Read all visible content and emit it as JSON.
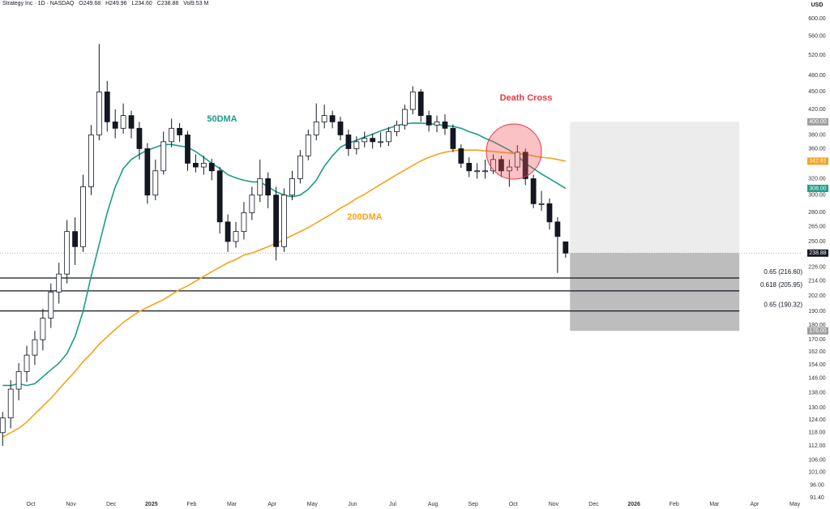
{
  "header": {
    "symbol": "Strategy Inc · 1D · NASDAQ",
    "ohlcv": [
      "O249.68",
      "H249.96",
      "L234.60",
      "C238.88",
      "Vol9.53 M"
    ]
  },
  "chart_data": {
    "type": "candlestick",
    "currency": "USD",
    "log_scale": true,
    "xlim": [
      -0.766,
      19.19
    ],
    "xticks": [
      {
        "value": 0,
        "label": "Oct"
      },
      {
        "value": 1,
        "label": "Nov"
      },
      {
        "value": 2,
        "label": "Dec"
      },
      {
        "value": 3,
        "label": "2025"
      },
      {
        "value": 4,
        "label": "Feb"
      },
      {
        "value": 5,
        "label": "Mar"
      },
      {
        "value": 6,
        "label": "Apr"
      },
      {
        "value": 7,
        "label": "May"
      },
      {
        "value": 8,
        "label": "Jun"
      },
      {
        "value": 9,
        "label": "Jul"
      },
      {
        "value": 10,
        "label": "Aug"
      },
      {
        "value": 11,
        "label": "Sep"
      },
      {
        "value": 12,
        "label": "Oct"
      },
      {
        "value": 13,
        "label": "Nov"
      },
      {
        "value": 14,
        "label": "Dec"
      },
      {
        "value": 15,
        "label": "2026"
      },
      {
        "value": 16,
        "label": "Feb"
      },
      {
        "value": 17,
        "label": "Mar"
      },
      {
        "value": 18,
        "label": "Apr"
      },
      {
        "value": 19,
        "label": "May"
      }
    ],
    "ylim": [
      91.4,
      645.6
    ],
    "yticks": [
      {
        "value": 600,
        "label": "600.00"
      },
      {
        "value": 560,
        "label": "560.00"
      },
      {
        "value": 520,
        "label": "520.00"
      },
      {
        "value": 480,
        "label": "480.00"
      },
      {
        "value": 450,
        "label": "450.00"
      },
      {
        "value": 420,
        "label": "420.00"
      },
      {
        "value": 380,
        "label": "380.00"
      },
      {
        "value": 360,
        "label": "360.00"
      },
      {
        "value": 320,
        "label": "320.00"
      },
      {
        "value": 300,
        "label": "300.00"
      },
      {
        "value": 280,
        "label": "280.00"
      },
      {
        "value": 265,
        "label": "265.00"
      },
      {
        "value": 250,
        "label": "250.00"
      },
      {
        "value": 226,
        "label": "226.00"
      },
      {
        "value": 214,
        "label": "214.00"
      },
      {
        "value": 202,
        "label": "202.00"
      },
      {
        "value": 190,
        "label": "190.00"
      },
      {
        "value": 180,
        "label": "180.00"
      },
      {
        "value": 170,
        "label": "170.00"
      },
      {
        "value": 162,
        "label": "162.00"
      },
      {
        "value": 154,
        "label": "154.00"
      },
      {
        "value": 146,
        "label": "146.00"
      },
      {
        "value": 138,
        "label": "138.00"
      },
      {
        "value": 130,
        "label": "130.00"
      },
      {
        "value": 124,
        "label": "124.00"
      },
      {
        "value": 118,
        "label": "118.00"
      },
      {
        "value": 112,
        "label": "112.00"
      },
      {
        "value": 106,
        "label": "106.00"
      },
      {
        "value": 101,
        "label": "101.00"
      },
      {
        "value": 96,
        "label": "96.00"
      },
      {
        "value": 91.4,
        "label": "91.40"
      }
    ],
    "x": [
      -0.7,
      -0.5,
      -0.3,
      -0.1,
      0.1,
      0.3,
      0.5,
      0.7,
      0.9,
      1.1,
      1.3,
      1.5,
      1.7,
      1.9,
      2.1,
      2.3,
      2.5,
      2.7,
      2.9,
      3.1,
      3.3,
      3.5,
      3.7,
      3.9,
      4.1,
      4.3,
      4.5,
      4.7,
      4.9,
      5.1,
      5.3,
      5.5,
      5.7,
      5.9,
      6.1,
      6.3,
      6.5,
      6.7,
      6.9,
      7.1,
      7.3,
      7.5,
      7.7,
      7.9,
      8.1,
      8.3,
      8.5,
      8.7,
      8.9,
      9.1,
      9.3,
      9.5,
      9.7,
      9.9,
      10.1,
      10.3,
      10.5,
      10.7,
      10.9,
      11.1,
      11.3,
      11.5,
      11.7,
      11.9,
      12.1,
      12.3,
      12.5,
      12.7,
      12.9,
      13.1,
      13.3
    ],
    "up_color": "#ffffff",
    "down_color": "#131722",
    "candle_edge": "#131722",
    "candles": [
      [
        118,
        128,
        112,
        125
      ],
      [
        125,
        145,
        120,
        140
      ],
      [
        140,
        155,
        134,
        150
      ],
      [
        150,
        166,
        144,
        160
      ],
      [
        160,
        176,
        154,
        170
      ],
      [
        170,
        192,
        163,
        185
      ],
      [
        185,
        212,
        178,
        205
      ],
      [
        205,
        230,
        196,
        220
      ],
      [
        220,
        272,
        212,
        260
      ],
      [
        260,
        275,
        228,
        245
      ],
      [
        245,
        325,
        240,
        310
      ],
      [
        310,
        395,
        300,
        380
      ],
      [
        380,
        543,
        372,
        450
      ],
      [
        450,
        470,
        385,
        400
      ],
      [
        400,
        420,
        375,
        390
      ],
      [
        390,
        430,
        382,
        410
      ],
      [
        410,
        418,
        375,
        390
      ],
      [
        390,
        400,
        345,
        360
      ],
      [
        360,
        368,
        290,
        300
      ],
      [
        300,
        345,
        294,
        330
      ],
      [
        330,
        385,
        325,
        370
      ],
      [
        370,
        405,
        362,
        390
      ],
      [
        390,
        398,
        370,
        380
      ],
      [
        380,
        386,
        330,
        340
      ],
      [
        340,
        352,
        328,
        335
      ],
      [
        335,
        350,
        325,
        340
      ],
      [
        340,
        346,
        318,
        330
      ],
      [
        330,
        335,
        258,
        270
      ],
      [
        270,
        278,
        240,
        250
      ],
      [
        250,
        270,
        244,
        260
      ],
      [
        260,
        292,
        252,
        280
      ],
      [
        280,
        310,
        272,
        300
      ],
      [
        300,
        345,
        292,
        320
      ],
      [
        320,
        328,
        285,
        300
      ],
      [
        300,
        310,
        232,
        245
      ],
      [
        245,
        308,
        240,
        300
      ],
      [
        300,
        330,
        294,
        320
      ],
      [
        320,
        358,
        314,
        350
      ],
      [
        350,
        388,
        344,
        380
      ],
      [
        380,
        430,
        372,
        400
      ],
      [
        400,
        428,
        390,
        410
      ],
      [
        410,
        418,
        390,
        400
      ],
      [
        400,
        408,
        372,
        380
      ],
      [
        380,
        388,
        350,
        360
      ],
      [
        360,
        378,
        352,
        370
      ],
      [
        370,
        385,
        362,
        375
      ],
      [
        375,
        382,
        360,
        370
      ],
      [
        370,
        384,
        362,
        370
      ],
      [
        370,
        392,
        364,
        385
      ],
      [
        385,
        402,
        378,
        395
      ],
      [
        395,
        428,
        388,
        420
      ],
      [
        420,
        460,
        412,
        450
      ],
      [
        450,
        455,
        400,
        410
      ],
      [
        410,
        418,
        385,
        395
      ],
      [
        395,
        410,
        384,
        400
      ],
      [
        400,
        412,
        380,
        390
      ],
      [
        390,
        396,
        355,
        360
      ],
      [
        360,
        366,
        334,
        340
      ],
      [
        340,
        348,
        322,
        330
      ],
      [
        330,
        340,
        320,
        330
      ],
      [
        330,
        345,
        320,
        330
      ],
      [
        330,
        352,
        326,
        345
      ],
      [
        345,
        350,
        322,
        330
      ],
      [
        330,
        345,
        310,
        335
      ],
      [
        335,
        365,
        330,
        355
      ],
      [
        355,
        360,
        312,
        320
      ],
      [
        320,
        325,
        285,
        290
      ],
      [
        290,
        305,
        282,
        290
      ],
      [
        290,
        296,
        262,
        270
      ],
      [
        270,
        275,
        221,
        255
      ],
      [
        249.68,
        249.96,
        234.6,
        238.88
      ]
    ],
    "series": [
      {
        "name": "50DMA",
        "color": "#1a9e86",
        "values": [
          142,
          142,
          143,
          142,
          143,
          147,
          151,
          155,
          161,
          172,
          190,
          218,
          247,
          280,
          310,
          333,
          345,
          352,
          358,
          362,
          366,
          366,
          364,
          362,
          356,
          348,
          340,
          333,
          325,
          321,
          318,
          316,
          316,
          310,
          304,
          300,
          298,
          300,
          307,
          318,
          336,
          350,
          362,
          368,
          372,
          377,
          381,
          386,
          390,
          394,
          397,
          398,
          398,
          397,
          396,
          394,
          393,
          390,
          385,
          381,
          375,
          370,
          364,
          358,
          350,
          340,
          333,
          326,
          320,
          314,
          308
        ]
      },
      {
        "name": "200DMA",
        "color": "#f7a21b",
        "values": [
          116,
          118,
          120,
          123,
          127,
          131,
          135,
          140,
          145,
          150,
          156,
          161,
          167,
          172,
          177,
          182,
          186,
          190,
          193,
          196,
          199,
          203,
          207,
          210,
          214,
          218,
          222,
          226,
          230,
          233,
          237,
          239,
          242,
          245,
          248,
          252,
          256,
          260,
          264,
          269,
          274,
          279,
          285,
          290,
          296,
          301,
          307,
          313,
          319,
          325,
          331,
          337,
          343,
          348,
          352,
          355,
          357,
          358,
          358,
          358,
          357,
          356,
          355,
          354,
          353,
          352,
          350,
          348,
          347,
          345,
          342.81
        ]
      }
    ],
    "annotation": "Death Cross",
    "annotation_color": "#e53945",
    "levels": [
      {
        "value": 216.6,
        "label": "0.65 (216.60)"
      },
      {
        "value": 205.95,
        "label": "0.618 (205.95)"
      },
      {
        "value": 190.32,
        "label": "0.65 (190.32)"
      }
    ],
    "target_box": {
      "x": [
        13.41,
        17.62
      ],
      "top": 400,
      "mid": 238.88,
      "bottom": 176,
      "upper_color": "#ececec",
      "lower_color": "#bdbdbd"
    },
    "axis_badges": [
      {
        "value": 400,
        "label": "400.00",
        "color": "#9e9e9e"
      },
      {
        "value": 342.81,
        "label": "342.81",
        "color": "#f7a21b"
      },
      {
        "value": 308,
        "label": "308.00",
        "color": "#1a9e86"
      },
      {
        "value": 238.88,
        "label": "238.88",
        "color": "#131722"
      },
      {
        "value": 176,
        "label": "176.00",
        "color": "#9e9e9e"
      }
    ]
  }
}
